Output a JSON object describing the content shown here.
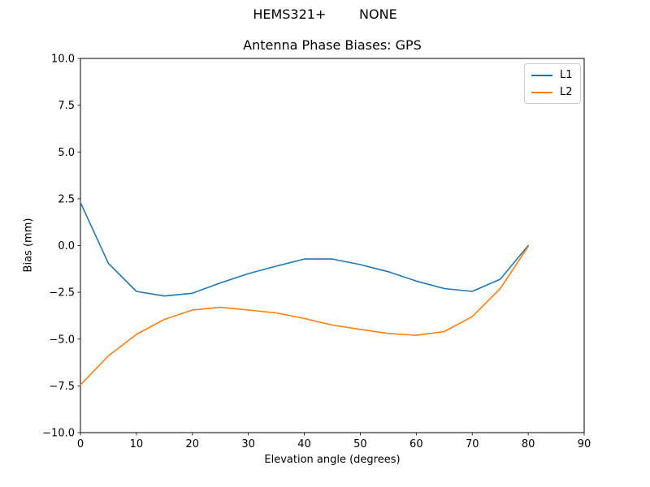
{
  "suptitle": "HEMS321+        NONE",
  "chart_data": {
    "type": "line",
    "title": "Antenna Phase Biases: GPS",
    "xlabel": "Elevation angle (degrees)",
    "ylabel": "Bias (mm)",
    "xlim": [
      0,
      90
    ],
    "ylim": [
      -10,
      10
    ],
    "grid": false,
    "legend_position": "upper right",
    "x_ticks": [
      0,
      10,
      20,
      30,
      40,
      50,
      60,
      70,
      80,
      90
    ],
    "y_ticks": [
      {
        "value": 10.0,
        "label": "10.0"
      },
      {
        "value": 7.5,
        "label": "7.5"
      },
      {
        "value": 5.0,
        "label": "5.0"
      },
      {
        "value": 2.5,
        "label": "2.5"
      },
      {
        "value": 0.0,
        "label": "0.0"
      },
      {
        "value": -2.5,
        "label": "−2.5"
      },
      {
        "value": -5.0,
        "label": "−5.0"
      },
      {
        "value": -7.5,
        "label": "−7.5"
      },
      {
        "value": -10.0,
        "label": "−10.0"
      }
    ],
    "x": [
      0,
      5,
      10,
      15,
      20,
      25,
      30,
      35,
      40,
      45,
      50,
      55,
      60,
      65,
      70,
      75,
      80
    ],
    "series": [
      {
        "name": "L1",
        "color": "#1f77b4",
        "values": [
          2.3,
          -0.95,
          -2.45,
          -2.7,
          -2.55,
          -2.0,
          -1.5,
          -1.1,
          -0.72,
          -0.72,
          -1.02,
          -1.4,
          -1.9,
          -2.3,
          -2.45,
          -1.8,
          0.0
        ]
      },
      {
        "name": "L2",
        "color": "#ff7f0e",
        "values": [
          -7.45,
          -5.9,
          -4.75,
          -3.95,
          -3.45,
          -3.3,
          -3.45,
          -3.6,
          -3.9,
          -4.25,
          -4.48,
          -4.7,
          -4.8,
          -4.6,
          -3.8,
          -2.3,
          -0.05
        ]
      }
    ]
  }
}
